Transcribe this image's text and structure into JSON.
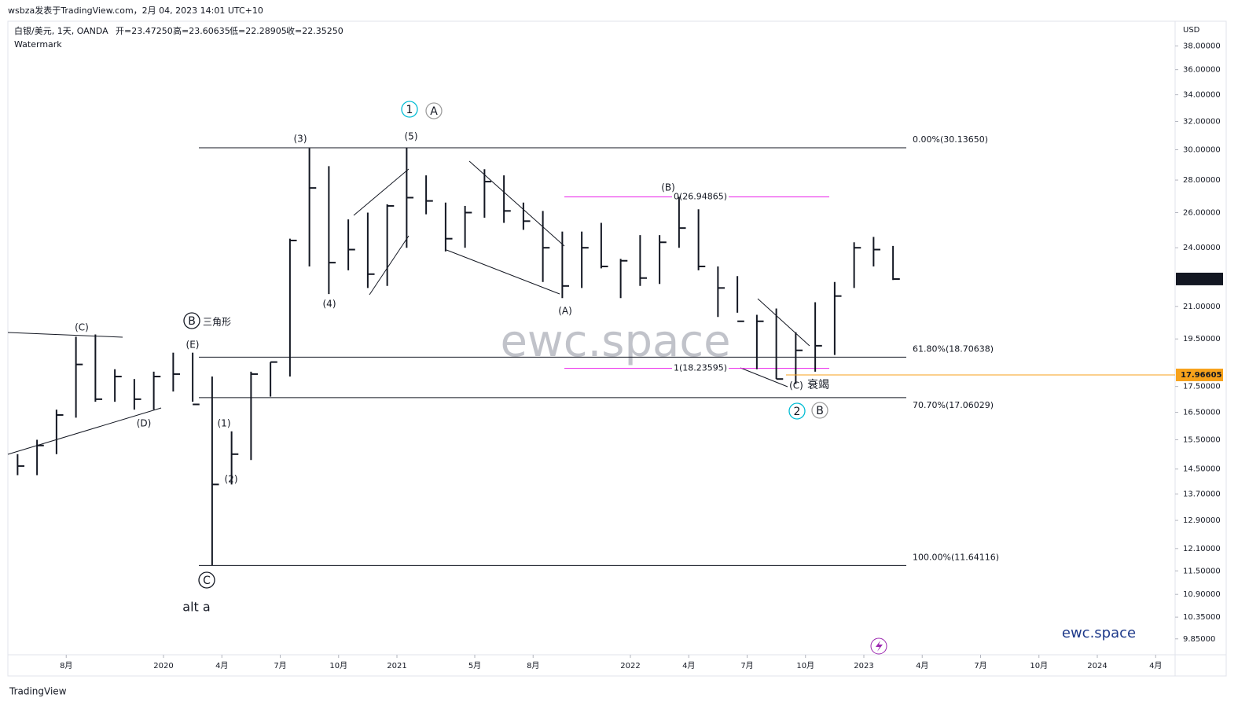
{
  "header": "wsbza发表于TradingView.com，2月 04, 2023 14:01 UTC+10",
  "footer": "TradingView",
  "chart_data": {
    "type": "ohlc",
    "symbol": "白银/美元, 1天, OANDA",
    "ohlc_legend": [
      "开=23.47250",
      "高=23.60635",
      "低=22.28905",
      "收=22.35250"
    ],
    "indicator": "Watermark",
    "currency": "USD",
    "watermark": "ewc.space",
    "brand": "ewc.space",
    "color": "#131722",
    "log_scale": true,
    "grid": false,
    "x": [
      "2019-05",
      "2019-06",
      "2019-07",
      "2019-08",
      "2019-09",
      "2019-10",
      "2019-11",
      "2019-12",
      "2020-01",
      "2020-02",
      "2020-03",
      "2020-04",
      "2020-05",
      "2020-06",
      "2020-07",
      "2020-08",
      "2020-09",
      "2020-10",
      "2020-11",
      "2020-12",
      "2021-01",
      "2021-02",
      "2021-03",
      "2021-04",
      "2021-05",
      "2021-06",
      "2021-07",
      "2021-08",
      "2021-09",
      "2021-10",
      "2021-11",
      "2021-12",
      "2022-01",
      "2022-02",
      "2022-03",
      "2022-04",
      "2022-05",
      "2022-06",
      "2022-07",
      "2022-08",
      "2022-09",
      "2022-10",
      "2022-11",
      "2022-12",
      "2023-01",
      "2023-02"
    ],
    "high": [
      15.0,
      15.5,
      16.6,
      19.6,
      19.7,
      18.2,
      17.8,
      18.1,
      18.9,
      18.9,
      17.9,
      15.8,
      18.1,
      18.5,
      24.5,
      30.1,
      28.9,
      25.6,
      26.0,
      26.5,
      30.14,
      28.3,
      26.6,
      26.4,
      28.7,
      28.3,
      26.6,
      26.1,
      24.9,
      24.9,
      25.4,
      23.4,
      24.7,
      24.7,
      26.95,
      26.2,
      23.0,
      22.5,
      20.6,
      20.9,
      19.8,
      21.2,
      22.2,
      24.3,
      24.6,
      24.1
    ],
    "low": [
      14.3,
      14.3,
      15.0,
      16.3,
      16.9,
      16.9,
      16.6,
      16.6,
      17.3,
      16.9,
      11.64,
      14.0,
      14.8,
      17.1,
      17.9,
      23.0,
      21.6,
      22.8,
      21.9,
      22.0,
      24.0,
      25.9,
      23.8,
      24.0,
      25.7,
      25.4,
      25.0,
      22.2,
      21.4,
      21.9,
      22.9,
      21.4,
      22.0,
      22.1,
      24.0,
      22.8,
      20.5,
      20.7,
      18.2,
      17.8,
      17.6,
      18.1,
      18.8,
      21.9,
      23.0,
      22.3
    ],
    "close": [
      14.6,
      15.3,
      16.4,
      18.4,
      17.0,
      17.9,
      17.0,
      17.9,
      18.0,
      16.8,
      14.0,
      15.0,
      18.0,
      18.5,
      24.4,
      27.5,
      23.2,
      23.9,
      22.6,
      26.4,
      26.9,
      26.7,
      24.5,
      26.0,
      27.9,
      26.1,
      25.5,
      24.0,
      22.0,
      24.0,
      23.0,
      23.3,
      22.4,
      24.3,
      25.1,
      23.0,
      21.9,
      20.3,
      20.3,
      17.8,
      19.0,
      19.2,
      21.5,
      24.0,
      23.9,
      22.35
    ],
    "xlim": [
      "2019-05",
      "2024-05"
    ],
    "xticks": [
      {
        "value": "2019-08",
        "label": "8月"
      },
      {
        "value": "2020-01",
        "label": "2020"
      },
      {
        "value": "2020-04",
        "label": "4月"
      },
      {
        "value": "2020-07",
        "label": "7月"
      },
      {
        "value": "2020-10",
        "label": "10月"
      },
      {
        "value": "2021-01",
        "label": "2021"
      },
      {
        "value": "2021-05",
        "label": "5月"
      },
      {
        "value": "2021-08",
        "label": "8月"
      },
      {
        "value": "2022-01",
        "label": "2022"
      },
      {
        "value": "2022-04",
        "label": "4月"
      },
      {
        "value": "2022-07",
        "label": "7月"
      },
      {
        "value": "2022-10",
        "label": "10月"
      },
      {
        "value": "2023-01",
        "label": "2023"
      },
      {
        "value": "2023-04",
        "label": "4月"
      },
      {
        "value": "2023-07",
        "label": "7月"
      },
      {
        "value": "2023-10",
        "label": "10月"
      },
      {
        "value": "2024-01",
        "label": "2024"
      },
      {
        "value": "2024-04",
        "label": "4月"
      }
    ],
    "ylim": [
      9.5,
      40.2
    ],
    "yticks": [
      {
        "value": 38,
        "label": "38.00000"
      },
      {
        "value": 36,
        "label": "36.00000"
      },
      {
        "value": 34,
        "label": "34.00000"
      },
      {
        "value": 32,
        "label": "32.00000"
      },
      {
        "value": 30,
        "label": "30.00000"
      },
      {
        "value": 28,
        "label": "28.00000"
      },
      {
        "value": 26,
        "label": "26.00000"
      },
      {
        "value": 24,
        "label": "24.00000"
      },
      {
        "value": 21,
        "label": "21.00000"
      },
      {
        "value": 19.5,
        "label": "19.50000"
      },
      {
        "value": 17.5,
        "label": "17.50000"
      },
      {
        "value": 16.5,
        "label": "16.50000"
      },
      {
        "value": 15.5,
        "label": "15.50000"
      },
      {
        "value": 14.5,
        "label": "14.50000"
      },
      {
        "value": 13.7,
        "label": "13.70000"
      },
      {
        "value": 12.9,
        "label": "12.90000"
      },
      {
        "value": 12.1,
        "label": "12.10000"
      },
      {
        "value": 11.5,
        "label": "11.50000"
      },
      {
        "value": 10.9,
        "label": "10.90000"
      },
      {
        "value": 10.35,
        "label": "10.35000"
      },
      {
        "value": 9.85,
        "label": "9.85000"
      }
    ],
    "levels": [
      {
        "value": 30.1365,
        "label": "0.00%(30.13650)",
        "color": "#131722"
      },
      {
        "value": 18.70638,
        "label": "61.80%(18.70638)",
        "color": "#131722"
      },
      {
        "value": 17.06029,
        "label": "70.70%(17.06029)",
        "color": "#131722"
      },
      {
        "value": 11.64116,
        "label": "100.00%(11.64116)",
        "color": "#131722"
      },
      {
        "value": 26.94865,
        "label": "0(26.94865)",
        "color": "#e91ee9"
      },
      {
        "value": 18.23595,
        "label": "1(18.23595)",
        "color": "#e91ee9"
      }
    ],
    "price_markers": [
      {
        "value": 22.3525,
        "label": "22.35250",
        "color": "#131722"
      },
      {
        "value": 17.96605,
        "label": "17.96605",
        "color": "#f7a21b"
      }
    ],
    "annotations": [
      {
        "text": "(C)",
        "color": "#e91ee9"
      },
      {
        "text": "(D)",
        "color": "#e91ee9"
      },
      {
        "text": "(E)",
        "color": "#e91ee9"
      },
      {
        "text": "B",
        "color": "#131722",
        "shape": "circle"
      },
      {
        "text": "三角形",
        "color": "#131722"
      },
      {
        "text": "(1)",
        "color": "#e91ee9"
      },
      {
        "text": "(2)",
        "color": "#e91ee9"
      },
      {
        "text": "(3)",
        "color": "#e91ee9"
      },
      {
        "text": "(4)",
        "color": "#e91ee9"
      },
      {
        "text": "(5)",
        "color": "#e91ee9"
      },
      {
        "text": "1",
        "color": "#00bcd4",
        "shape": "circle"
      },
      {
        "text": "A",
        "color": "#9e9e9e",
        "shape": "circle"
      },
      {
        "text": "(A)",
        "color": "#e91ee9"
      },
      {
        "text": "(B)",
        "color": "#e91ee9"
      },
      {
        "text": "(C)",
        "color": "#e91ee9"
      },
      {
        "text": "衰竭",
        "color": "#e91ee9"
      },
      {
        "text": "2",
        "color": "#00bcd4",
        "shape": "circle"
      },
      {
        "text": "B",
        "color": "#9e9e9e",
        "shape": "circle"
      },
      {
        "text": "C",
        "color": "#131722",
        "shape": "circle"
      },
      {
        "text": "alt a",
        "color": "#787b86"
      }
    ]
  }
}
